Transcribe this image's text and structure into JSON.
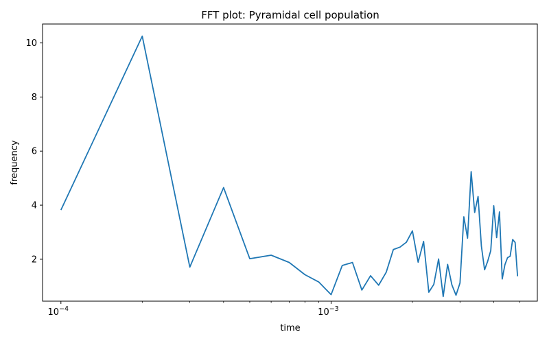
{
  "chart_data": {
    "type": "line",
    "title": "FFT plot: Pyramidal cell population",
    "xlabel": "time",
    "ylabel": "frequency",
    "xscale": "log",
    "xlim": [
      8.55e-05,
      0.0058
    ],
    "ylim": [
      0.45,
      10.7
    ],
    "grid": false,
    "line_color": "#1f77b4",
    "y_ticks": [
      {
        "value": 2,
        "label": "2"
      },
      {
        "value": 4,
        "label": "4"
      },
      {
        "value": 6,
        "label": "6"
      },
      {
        "value": 8,
        "label": "8"
      },
      {
        "value": 10,
        "label": "10"
      }
    ],
    "x_major_ticks": [
      {
        "value": 0.0001,
        "base": "10",
        "exp": "−4"
      },
      {
        "value": 0.001,
        "base": "10",
        "exp": "−3"
      }
    ],
    "x_minor_ticks": [
      0.0002,
      0.0003,
      0.0004,
      0.0005,
      0.0006,
      0.0007,
      0.0008,
      0.0009,
      0.002,
      0.003,
      0.004,
      0.005
    ],
    "series": [
      {
        "x": [
          0.0001,
          0.0002,
          0.0003,
          0.0004,
          0.0005,
          0.0006,
          0.0007,
          0.0008,
          0.0009,
          0.001,
          0.0011,
          0.0012,
          0.0013,
          0.0014,
          0.0015,
          0.0016,
          0.0017,
          0.0018,
          0.0019,
          0.002,
          0.0021,
          0.0022,
          0.0023,
          0.0024,
          0.0025,
          0.0026,
          0.0027,
          0.0028,
          0.0029,
          0.003,
          0.0031,
          0.0032,
          0.0033,
          0.0034,
          0.0035,
          0.0036,
          0.0037,
          0.0038,
          0.0039,
          0.004,
          0.0041,
          0.0042,
          0.0043,
          0.0044,
          0.0045,
          0.0046,
          0.0047,
          0.0048,
          0.0049
        ],
        "y": [
          3.82,
          10.25,
          1.71,
          4.65,
          2.02,
          2.15,
          1.88,
          1.43,
          1.16,
          0.69,
          1.77,
          1.88,
          0.86,
          1.39,
          1.04,
          1.52,
          2.36,
          2.45,
          2.63,
          3.05,
          1.89,
          2.66,
          0.78,
          1.07,
          2.01,
          0.62,
          1.81,
          1.05,
          0.67,
          1.12,
          3.57,
          2.78,
          5.24,
          3.73,
          4.32,
          2.49,
          1.61,
          1.93,
          2.32,
          3.98,
          2.8,
          3.75,
          1.27,
          1.8,
          2.06,
          2.11,
          2.73,
          2.62,
          1.37
        ]
      }
    ]
  }
}
